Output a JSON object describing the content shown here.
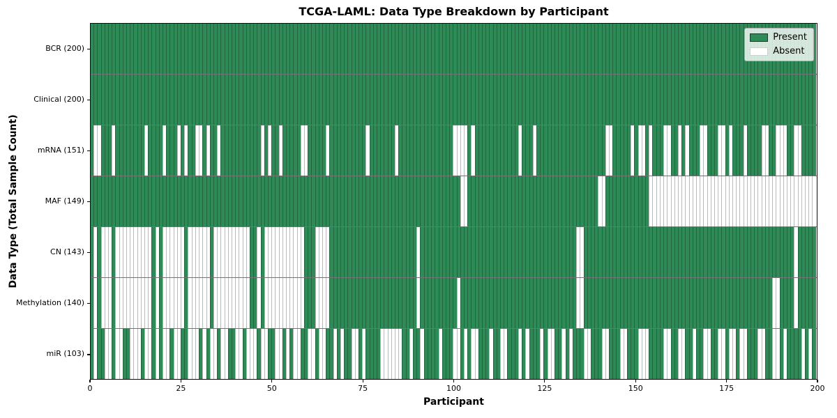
{
  "title": "TCGA-LAML: Data Type Breakdown by Participant",
  "x_axis": {
    "label": "Participant",
    "ticks": [
      "0",
      "25",
      "50",
      "75",
      "100",
      "125",
      "150",
      "175",
      "200"
    ],
    "tick_values": [
      0,
      25,
      50,
      75,
      100,
      125,
      150,
      175,
      200
    ],
    "min": 0,
    "max": 200
  },
  "y_axis": {
    "label": "Data Type (Total Sample Count)"
  },
  "legend": {
    "present_label": "Present",
    "absent_label": "Absent"
  },
  "colors": {
    "present": "#2e8b57",
    "absent": "#ffffff",
    "cell_border": "rgba(0,0,0,0.27)",
    "row_separator": "rgba(0,0,0,0.55)",
    "plot_border": "#0a0a0a",
    "legend_border": "#b0b0b0"
  },
  "chart_data": {
    "type": "heatmap",
    "title": "TCGA-LAML: Data Type Breakdown by Participant",
    "xlabel": "Participant",
    "ylabel": "Data Type (Total Sample Count)",
    "x_range": [
      0,
      200
    ],
    "grid": false,
    "legend_position": "upper right",
    "legend_entries": [
      "Present",
      "Absent"
    ],
    "encoding": "pattern strings: one char per participant (index 0-199), 1 = Present (green), 0 = Absent (white)",
    "rows": [
      {
        "label": "BCR (200)",
        "name": "BCR",
        "present_count": 200,
        "pattern": "11111111111111111111111111111111111111111111111111111111111111111111111111111111111111111111111111111111111111111111111111111111111111111111111111111111111111111111111111111111111111111111111111111111"
      },
      {
        "label": "Clinical (200)",
        "name": "Clinical",
        "present_count": 200,
        "pattern": "11111111111111111111111111111111111111111111111111111111111111111111111111111111111111111111111111111111111111111111111111111111111111111111111111111111111111111111111111111111111111111111111111111111"
      },
      {
        "label": "mRNA (151)",
        "name": "mRNA",
        "present_count": 151,
        "pattern": "10011101111111101111011101011001011011111111111010110111110011111011111111110111111101111111111111110000101111111111110111011111111111111111110011111010010111001101011100111001011101111001100011001111"
      },
      {
        "label": "MAF (149)",
        "name": "MAF",
        "present_count": 149,
        "pattern": "11111111111111111111111111111111111111111111111111111111111111111111111111111111111111111111111111111100111111111111111111111111111111111111001111111111110000000000000000000000000000000000000000000000"
      },
      {
        "label": "CN (143)",
        "name": "CN",
        "present_count": 143,
        "pattern": "10100010000000000101000000100000010000000000110100000000000111000011111111111111111111111101111111111111111111111111111111111111111111001111111111111111111111111111111111111111111111111111111111011111"
      },
      {
        "label": "Methylation (140)",
        "name": "Methylation",
        "present_count": 140,
        "pattern": "10100010000000000101000000100000010000000000110100000000000111000011111111111111111111111101111111111011111111111111111111111111111111001111111111111111111111111111111111111111111111111111001111011111"
      },
      {
        "label": "miR (103)",
        "name": "miR",
        "present_count": 103,
        "pattern": "10110010011000100101001001100010100100110010001001100101001100100110101100101111000000110110111101110010100111011001110101110100110101110011100111001110001111001100110110011001001001110011001011110101"
      }
    ]
  }
}
